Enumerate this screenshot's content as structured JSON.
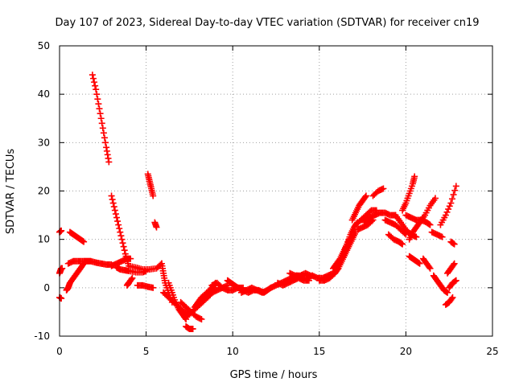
{
  "chart_data": {
    "type": "scatter",
    "title": "Day 107 of 2023, Sidereal Day-to-day VTEC variation (SDTVAR) for receiver cn19",
    "xlabel": "GPS time / hours",
    "ylabel": "SDTVAR / TECUs",
    "xlim": [
      0,
      25
    ],
    "ylim": [
      -10,
      50
    ],
    "xticks": [
      0,
      5,
      10,
      15,
      20,
      25
    ],
    "yticks": [
      -10,
      0,
      10,
      20,
      30,
      40,
      50
    ],
    "grid": true,
    "marker": "plus",
    "color": "#ff0000",
    "segments": [
      {
        "x": [
          1.9,
          2.1,
          2.3,
          2.5,
          2.7,
          2.85
        ],
        "y": [
          44,
          41,
          37,
          33,
          29,
          26
        ]
      },
      {
        "x": [
          5.1,
          5.2,
          5.3,
          5.4
        ],
        "y": [
          23.5,
          22,
          20.5,
          19
        ]
      },
      {
        "x": [
          5.5,
          5.6
        ],
        "y": [
          13.5,
          12.5
        ]
      },
      {
        "x": [
          3.0,
          3.2,
          3.4,
          3.6,
          3.8,
          3.95
        ],
        "y": [
          19,
          16,
          13,
          10,
          7,
          5
        ]
      },
      {
        "x": [
          0.0,
          0.1
        ],
        "y": [
          11.5,
          11.8
        ]
      },
      {
        "x": [
          0.6,
          0.8,
          1.0,
          1.2,
          1.4
        ],
        "y": [
          11.5,
          11,
          10.5,
          10,
          9.5
        ]
      },
      {
        "x": [
          0.0,
          0.05,
          0.1,
          0.15
        ],
        "y": [
          3,
          3.5,
          4,
          4
        ]
      },
      {
        "x": [
          0.0,
          0.1
        ],
        "y": [
          -2,
          -2.2
        ]
      },
      {
        "x": [
          0.4,
          0.5,
          0.6,
          0.8,
          1.0,
          1.2,
          1.4
        ],
        "y": [
          -0.5,
          0,
          1,
          2,
          3,
          4,
          5
        ]
      },
      {
        "x": [
          0.5,
          0.8,
          1.1,
          1.4,
          1.6,
          1.8,
          2.1,
          2.4,
          2.7,
          3.0
        ],
        "y": [
          5,
          5.5,
          5.5,
          5.5,
          5.5,
          5.5,
          5.2,
          5,
          4.8,
          4.8
        ]
      },
      {
        "x": [
          3.0,
          3.3,
          3.6,
          3.9,
          4.1
        ],
        "y": [
          4.5,
          5,
          5.5,
          6,
          6
        ]
      },
      {
        "x": [
          3.3,
          3.5,
          3.8,
          4.0
        ],
        "y": [
          4.2,
          3.8,
          3.6,
          3.5
        ]
      },
      {
        "x": [
          3.9,
          4.0,
          4.2
        ],
        "y": [
          0.5,
          1,
          2
        ]
      },
      {
        "x": [
          4.0,
          4.4,
          4.8,
          5.2,
          5.6,
          5.9
        ],
        "y": [
          4.5,
          4.2,
          3.8,
          3.8,
          4,
          5
        ]
      },
      {
        "x": [
          4.5,
          4.8,
          5.1,
          5.4
        ],
        "y": [
          0.5,
          0.5,
          0.2,
          0
        ]
      },
      {
        "x": [
          4.0,
          4.4,
          4.8,
          5.0
        ],
        "y": [
          3.5,
          3.2,
          3.2,
          3.5
        ]
      },
      {
        "x": [
          5.9,
          6.0,
          6.1,
          6.3,
          6.5
        ],
        "y": [
          5,
          3,
          1,
          -1,
          -3
        ]
      },
      {
        "x": [
          6.3,
          6.5,
          6.7,
          6.9,
          7.1,
          7.3
        ],
        "y": [
          1,
          -1,
          -3,
          -4.5,
          -5.5,
          -6.5
        ]
      },
      {
        "x": [
          6.0,
          6.3,
          6.6,
          6.9,
          7.2,
          7.5
        ],
        "y": [
          -1,
          -2,
          -3,
          -4,
          -5,
          -5.5
        ]
      },
      {
        "x": [
          7.3,
          7.5,
          7.7
        ],
        "y": [
          -8,
          -8.5,
          -8.5
        ]
      },
      {
        "x": [
          7.2,
          7.5,
          7.8,
          8.1,
          8.4,
          8.7,
          8.9
        ],
        "y": [
          -6,
          -5.5,
          -4.5,
          -3.5,
          -2.5,
          -1.5,
          0
        ]
      },
      {
        "x": [
          7.0,
          7.3,
          7.6,
          7.9,
          8.2
        ],
        "y": [
          -3,
          -4,
          -5,
          -6,
          -6.5
        ]
      },
      {
        "x": [
          7.8,
          8.0,
          8.2,
          8.5,
          8.8,
          9.0
        ],
        "y": [
          -4,
          -3,
          -2,
          -1,
          0,
          1
        ]
      },
      {
        "x": [
          8.2,
          8.5,
          8.8,
          9.1,
          9.4,
          9.7
        ],
        "y": [
          -2,
          -1.5,
          -1,
          -0.5,
          0,
          0.5
        ]
      },
      {
        "x": [
          8.8,
          9.1,
          9.4,
          9.7,
          10.0,
          10.3,
          10.6
        ],
        "y": [
          0.5,
          1,
          0,
          -0.5,
          -0.5,
          0,
          0
        ]
      },
      {
        "x": [
          9.7,
          9.9,
          10.1,
          10.3
        ],
        "y": [
          1.5,
          1,
          0.5,
          0
        ]
      },
      {
        "x": [
          10.3,
          10.6,
          10.9,
          11.2,
          11.5,
          11.8,
          12.0,
          12.2
        ],
        "y": [
          0,
          -0.5,
          -1,
          -0.5,
          -0.5,
          -1,
          -0.5,
          0
        ]
      },
      {
        "x": [
          10.5,
          10.8,
          11.1,
          11.4,
          11.7,
          12.0
        ],
        "y": [
          -1,
          -0.5,
          0,
          -0.5,
          -1,
          -0.5
        ]
      },
      {
        "x": [
          12.2,
          12.5,
          12.8,
          13.1,
          13.4,
          13.7,
          14.0,
          14.3,
          14.6
        ],
        "y": [
          0,
          0.5,
          1,
          1.5,
          2,
          2.5,
          2,
          2,
          2.5
        ]
      },
      {
        "x": [
          12.6,
          12.9,
          13.2,
          13.5,
          13.8,
          14.1,
          14.4
        ],
        "y": [
          1,
          0.5,
          1,
          1.5,
          2,
          1.5,
          1.5
        ]
      },
      {
        "x": [
          13.3,
          13.6,
          13.9,
          14.2,
          14.5
        ],
        "y": [
          3,
          2.5,
          2.5,
          3,
          2.5
        ]
      },
      {
        "x": [
          14.6,
          14.9,
          15.2,
          15.5,
          15.8
        ],
        "y": [
          2.5,
          2,
          2,
          2.5,
          3
        ]
      },
      {
        "x": [
          15.0,
          15.3,
          15.6,
          15.9
        ],
        "y": [
          1.5,
          1.5,
          2,
          3
        ]
      },
      {
        "x": [
          15.8,
          16.0,
          16.2,
          16.4,
          16.6,
          16.8
        ],
        "y": [
          4,
          5,
          6,
          7.5,
          9,
          10.5
        ]
      },
      {
        "x": [
          15.9,
          16.1,
          16.3,
          16.5,
          16.7,
          16.9,
          17.1
        ],
        "y": [
          3,
          4,
          5.5,
          7,
          8.5,
          10,
          11.5
        ]
      },
      {
        "x": [
          16.4,
          16.6,
          16.8,
          17.0,
          17.2
        ],
        "y": [
          7,
          9,
          11,
          12.5,
          13.5
        ]
      },
      {
        "x": [
          16.9,
          17.1,
          17.3,
          17.5,
          17.7
        ],
        "y": [
          14,
          15.5,
          17,
          18,
          19
        ]
      },
      {
        "x": [
          17.2,
          17.5,
          17.8,
          18.1
        ],
        "y": [
          12,
          12.5,
          13,
          14
        ]
      },
      {
        "x": [
          17.1,
          17.4,
          17.7,
          18.0,
          18.3
        ],
        "y": [
          13,
          14,
          15,
          16,
          16
        ]
      },
      {
        "x": [
          17.6,
          17.9,
          18.2,
          18.5,
          18.8,
          19.1,
          19.4
        ],
        "y": [
          13.5,
          14.5,
          15,
          15.5,
          15.5,
          15,
          15
        ]
      },
      {
        "x": [
          18.1,
          18.4,
          18.7
        ],
        "y": [
          19,
          20,
          20.5
        ]
      },
      {
        "x": [
          18.8,
          19.1,
          19.4,
          19.7,
          20.0
        ],
        "y": [
          14,
          13.5,
          13,
          12,
          11
        ]
      },
      {
        "x": [
          19.0,
          19.3,
          19.6,
          19.8
        ],
        "y": [
          11,
          10,
          9.5,
          9
        ]
      },
      {
        "x": [
          19.4,
          19.7,
          20.0,
          20.3,
          20.6
        ],
        "y": [
          15,
          13.5,
          12,
          11,
          10.5
        ]
      },
      {
        "x": [
          19.8,
          20.0,
          20.2,
          20.4,
          20.5
        ],
        "y": [
          16,
          17.5,
          19.5,
          21.5,
          23
        ]
      },
      {
        "x": [
          20.2,
          20.4,
          20.6,
          20.8
        ],
        "y": [
          10,
          11.5,
          12.5,
          13.5
        ]
      },
      {
        "x": [
          20.0,
          20.3,
          20.6,
          20.9,
          21.2,
          21.4
        ],
        "y": [
          15,
          14.5,
          14,
          14,
          13.5,
          13
        ]
      },
      {
        "x": [
          20.8,
          21.1,
          21.4,
          21.7
        ],
        "y": [
          13.5,
          15,
          17,
          18.5
        ]
      },
      {
        "x": [
          21.5,
          21.8,
          22.1
        ],
        "y": [
          11.5,
          11,
          10.5
        ]
      },
      {
        "x": [
          20.2,
          20.4,
          20.6,
          20.8
        ],
        "y": [
          6.5,
          6,
          5.5,
          5
        ]
      },
      {
        "x": [
          21.0,
          21.2,
          21.4
        ],
        "y": [
          6,
          5,
          4
        ]
      },
      {
        "x": [
          21.6,
          21.8,
          22.0,
          22.2,
          22.4
        ],
        "y": [
          2.5,
          1.5,
          0.5,
          -0.5,
          -1
        ]
      },
      {
        "x": [
          22.3,
          22.5,
          22.7
        ],
        "y": [
          -3.5,
          -3,
          -2
        ]
      },
      {
        "x": [
          22.4,
          22.6,
          22.8
        ],
        "y": [
          3,
          4,
          5
        ]
      },
      {
        "x": [
          22.5,
          22.7,
          22.9
        ],
        "y": [
          0,
          1,
          1.5
        ]
      },
      {
        "x": [
          22.0,
          22.3,
          22.6,
          22.9
        ],
        "y": [
          13,
          15,
          17.5,
          21
        ]
      },
      {
        "x": [
          22.6,
          22.8
        ],
        "y": [
          9.5,
          9
        ]
      }
    ]
  }
}
